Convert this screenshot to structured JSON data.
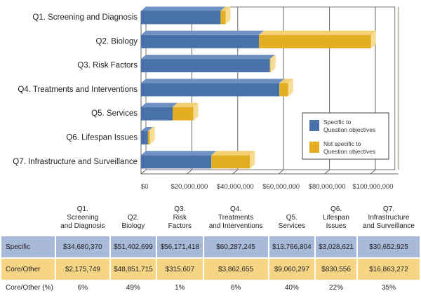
{
  "chart_data": {
    "type": "bar",
    "orientation": "horizontal",
    "stacked": true,
    "categories": [
      "Q1. Screening and Diagnosis",
      "Q2. Biology",
      "Q3. Risk Factors",
      "Q4. Treatments and Interventions",
      "Q5. Services",
      "Q6. Lifespan Issues",
      "Q7. Infrastructure and Surveillance"
    ],
    "series": [
      {
        "name": "Specific to Question objectives",
        "color": "#4a72aa",
        "values": [
          34680370,
          51402699,
          56171418,
          60287245,
          13766804,
          3028621,
          30652925
        ]
      },
      {
        "name": "Not specific to Question objectives",
        "color": "#e3ae22",
        "values": [
          2175749,
          48851715,
          315607,
          3862655,
          9060297,
          830556,
          16863272
        ]
      }
    ],
    "xlim": [
      0,
      110000000
    ],
    "xticks": [
      0,
      20000000,
      40000000,
      60000000,
      80000000,
      100000000
    ],
    "xtick_labels": [
      "$0",
      "$20,000,000",
      "$40,000,000",
      "$60,000,000",
      "$80,000,000",
      "$100,000,000"
    ],
    "grid": true,
    "legend_placement": "bottom-right"
  },
  "table": {
    "headers": [
      [
        "Q1.",
        "Screening",
        "and Diagnosis"
      ],
      [
        "Q2.",
        "Biology"
      ],
      [
        "Q3.",
        "Risk",
        "Factors"
      ],
      [
        "Q4.",
        "Treatments",
        "and Interventions"
      ],
      [
        "Q5.",
        "Services"
      ],
      [
        "Q6.",
        "Lifespan",
        "Issues"
      ],
      [
        "Q7.",
        "Infrastructure",
        "and Surveillance"
      ]
    ],
    "rows": [
      {
        "label": "Specific",
        "cells": [
          "$34,680,370",
          "$51,402,699",
          "$56,171,418",
          "$60,287,245",
          "$13,766,804",
          "$3,028,621",
          "$30,652,925"
        ]
      },
      {
        "label": "Core/Other",
        "cells": [
          "$2,175,749",
          "$48,851,715",
          "$315,607",
          "$3,862,655",
          "$9,060,297",
          "$830,556",
          "$16,863,272"
        ]
      },
      {
        "label": "Core/Other (%)",
        "cells": [
          "6%",
          "49%",
          "1%",
          "6%",
          "40%",
          "22%",
          "35%"
        ]
      }
    ]
  }
}
